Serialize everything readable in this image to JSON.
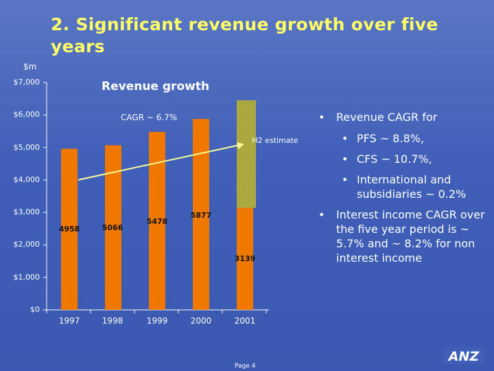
{
  "slide": {
    "title": "2. Significant revenue growth over five years",
    "footer": "Page 4",
    "logo_text": "ANZ"
  },
  "colors": {
    "background": "#3f5fb8",
    "bar": "#f07800",
    "estimate": "#a7a43c",
    "trend": "#ffff99",
    "title": "#ffff66"
  },
  "chart_data": {
    "type": "bar",
    "title": "Revenue growth",
    "unit_label": "$m",
    "categories": [
      "1997",
      "1998",
      "1999",
      "2000",
      "2001"
    ],
    "values": [
      4958,
      5066,
      5478,
      5877,
      3139
    ],
    "value_labels": [
      "4958",
      "5066",
      "5478",
      "5877",
      "3139"
    ],
    "estimate": {
      "category": "2001",
      "label": "H2 estimate",
      "base": 3139,
      "total": 6450
    },
    "ylim": [
      0,
      7000
    ],
    "yticks": [
      0,
      1000,
      2000,
      3000,
      4000,
      5000,
      6000,
      7000
    ],
    "ytick_labels": [
      "$0",
      "$1,000",
      "$2,000",
      "$3,000",
      "$4,000",
      "$5,000",
      "$6,000",
      "$7,000"
    ],
    "trendline": {
      "label": "CAGR ~ 6.7%",
      "from": 4000,
      "to": 5100
    },
    "grid": false,
    "legend": "none"
  },
  "bullets": {
    "b1": "Revenue CAGR for",
    "b1_sub": [
      "PFS ~ 8.8%,",
      "CFS ~ 10.7%,",
      "International and subsidiaries ~ 0.2%"
    ],
    "b2": "Interest income CAGR over the five year period is ~ 5.7% and ~ 8.2% for non interest income"
  }
}
